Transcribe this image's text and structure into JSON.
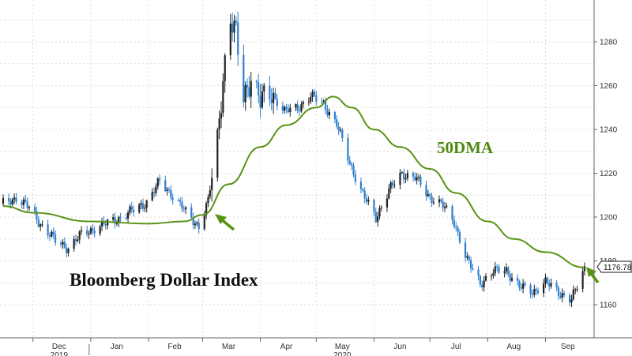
{
  "chart_data": {
    "type": "line",
    "title": "Bloomberg Dollar Index",
    "ylim": [
      1150,
      1300
    ],
    "y_ticks": [
      1160,
      1180,
      1200,
      1220,
      1240,
      1260,
      1280
    ],
    "grid": true,
    "x_ticks": [
      "Dec",
      "Jan",
      "Feb",
      "Mar",
      "Apr",
      "May",
      "Jun",
      "Jul",
      "Aug",
      "Sep"
    ],
    "x_year_labels": [
      "2019",
      "2020"
    ],
    "last_value_label": "1176.78",
    "ma_label": "50DMA",
    "colors": {
      "up_candle": "#222222",
      "down_candle": "#2f7fd0",
      "ma_line": "#5a9216",
      "arrow": "#5a9216",
      "grid": "#cccccc"
    },
    "series": [
      {
        "name": "Bloomberg Dollar Index",
        "style": "candlestick",
        "x": [
          "2019-11-15",
          "2019-11-22",
          "2019-11-29",
          "2019-12-06",
          "2019-12-13",
          "2019-12-20",
          "2019-12-27",
          "2020-01-03",
          "2020-01-10",
          "2020-01-17",
          "2020-01-24",
          "2020-01-31",
          "2020-02-07",
          "2020-02-14",
          "2020-02-21",
          "2020-02-28",
          "2020-03-04",
          "2020-03-09",
          "2020-03-12",
          "2020-03-16",
          "2020-03-19",
          "2020-03-23",
          "2020-03-27",
          "2020-04-01",
          "2020-04-07",
          "2020-04-14",
          "2020-04-21",
          "2020-04-28",
          "2020-05-05",
          "2020-05-12",
          "2020-05-19",
          "2020-05-26",
          "2020-06-02",
          "2020-06-09",
          "2020-06-16",
          "2020-06-23",
          "2020-06-30",
          "2020-07-07",
          "2020-07-14",
          "2020-07-21",
          "2020-07-28",
          "2020-08-04",
          "2020-08-11",
          "2020-08-18",
          "2020-08-25",
          "2020-09-01",
          "2020-09-08",
          "2020-09-15",
          "2020-09-22"
        ],
        "values": [
          1206,
          1209,
          1204,
          1196,
          1189,
          1186,
          1192,
          1195,
          1197,
          1200,
          1203,
          1207,
          1216,
          1210,
          1202,
          1196,
          1207,
          1235,
          1265,
          1290,
          1282,
          1255,
          1265,
          1252,
          1257,
          1248,
          1250,
          1255,
          1252,
          1242,
          1225,
          1210,
          1200,
          1212,
          1220,
          1218,
          1210,
          1206,
          1198,
          1180,
          1170,
          1175,
          1176,
          1168,
          1166,
          1170,
          1166,
          1162,
          1176.78
        ]
      },
      {
        "name": "50DMA",
        "style": "line",
        "x": [
          "2019-11-15",
          "2019-12-01",
          "2020-01-01",
          "2020-02-01",
          "2020-02-20",
          "2020-03-01",
          "2020-03-15",
          "2020-04-01",
          "2020-04-15",
          "2020-05-01",
          "2020-05-10",
          "2020-05-20",
          "2020-06-01",
          "2020-06-15",
          "2020-07-01",
          "2020-07-15",
          "2020-08-01",
          "2020-08-15",
          "2020-09-01",
          "2020-09-22"
        ],
        "values": [
          1205,
          1202,
          1198,
          1197,
          1198,
          1201,
          1215,
          1232,
          1242,
          1250,
          1255,
          1250,
          1240,
          1232,
          1222,
          1211,
          1198,
          1190,
          1184,
          1177
        ]
      }
    ]
  }
}
